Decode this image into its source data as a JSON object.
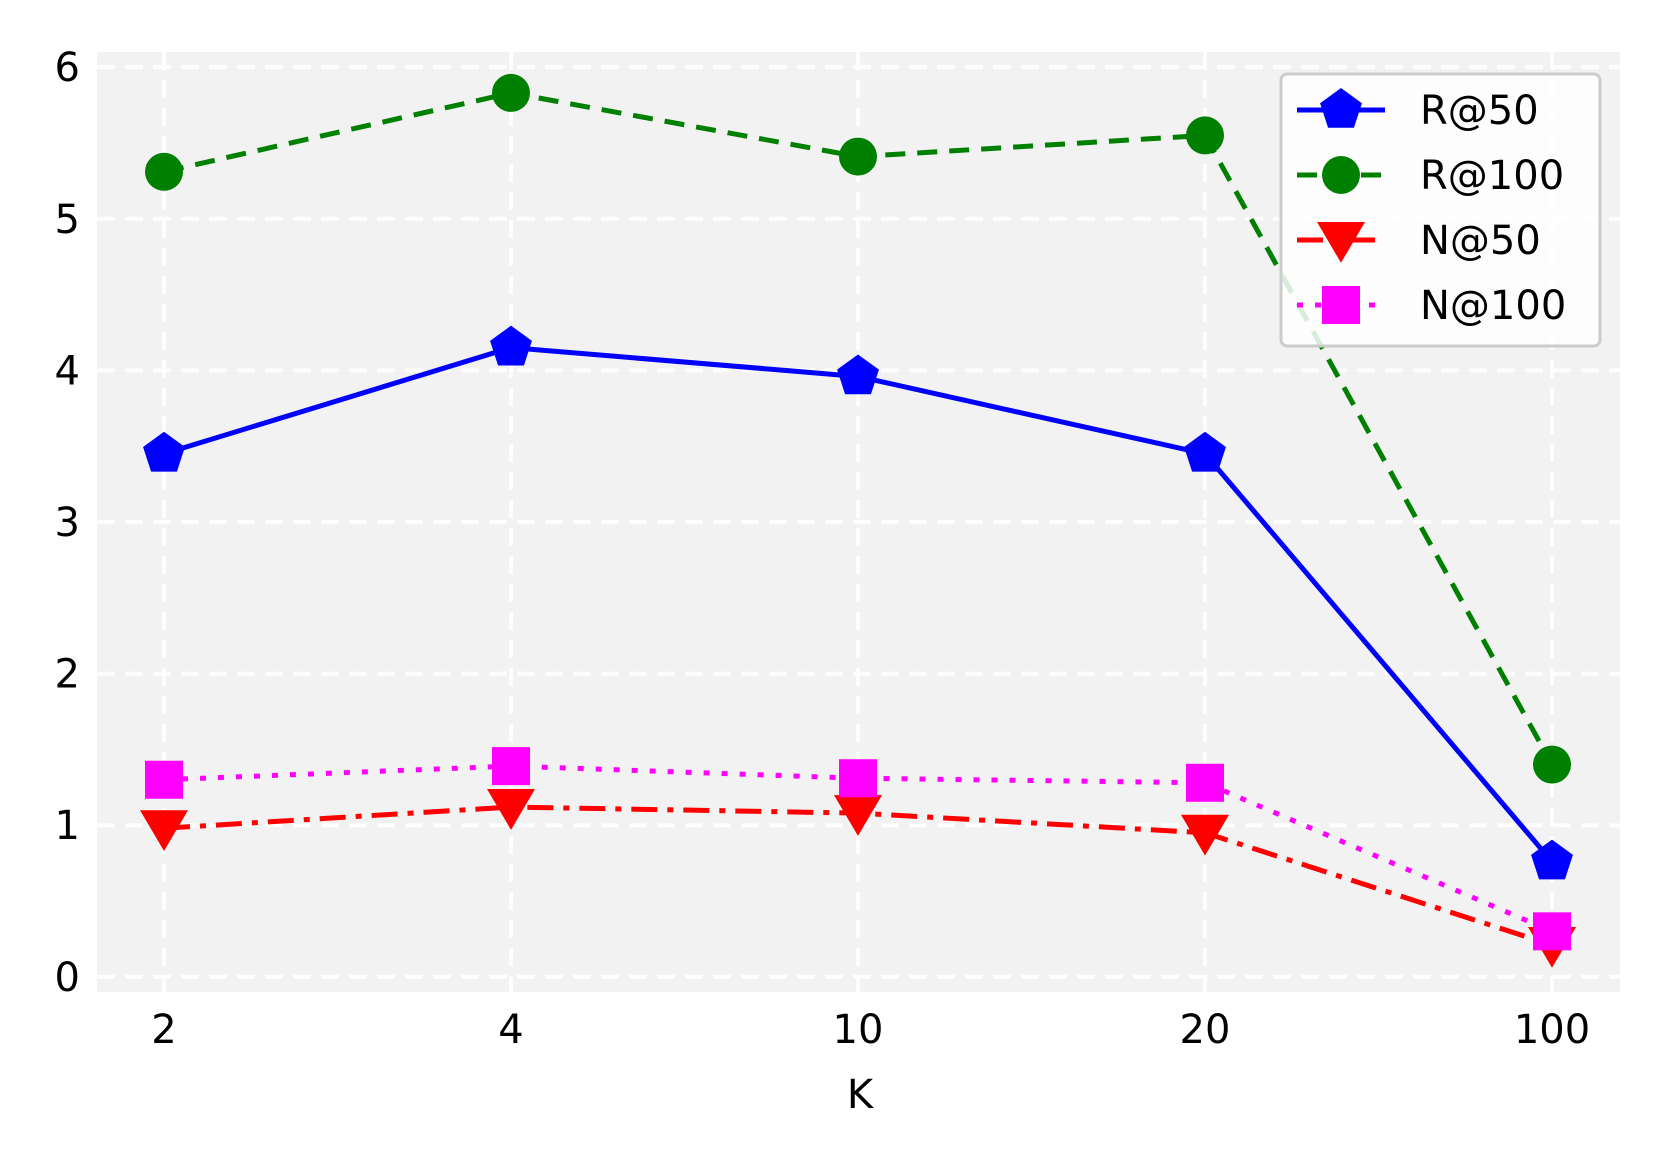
{
  "chart_data": {
    "type": "line",
    "title": "",
    "xlabel": "K",
    "ylabel": "",
    "categories": [
      "2",
      "4",
      "10",
      "20",
      "100"
    ],
    "ylim": [
      -0.1,
      6.1
    ],
    "yticks": [
      "0",
      "1",
      "2",
      "3",
      "4",
      "5",
      "6"
    ],
    "grid": true,
    "background": "#f2f2f2",
    "legend_position": "top-right",
    "series": [
      {
        "name": "R@50",
        "values": [
          3.45,
          4.15,
          3.96,
          3.45,
          0.76
        ],
        "color": "#0000ff",
        "line_style": "solid",
        "marker": "pentagon"
      },
      {
        "name": "R@100",
        "values": [
          5.31,
          5.83,
          5.41,
          5.55,
          1.4
        ],
        "color": "#008000",
        "line_style": "dashed",
        "marker": "circle"
      },
      {
        "name": "N@50",
        "values": [
          0.98,
          1.12,
          1.08,
          0.95,
          0.21
        ],
        "color": "#ff0000",
        "line_style": "dash-dot",
        "marker": "triangle-down"
      },
      {
        "name": "N@100",
        "values": [
          1.3,
          1.39,
          1.31,
          1.28,
          0.3
        ],
        "color": "#ff00ff",
        "line_style": "dotted",
        "marker": "square"
      }
    ]
  }
}
